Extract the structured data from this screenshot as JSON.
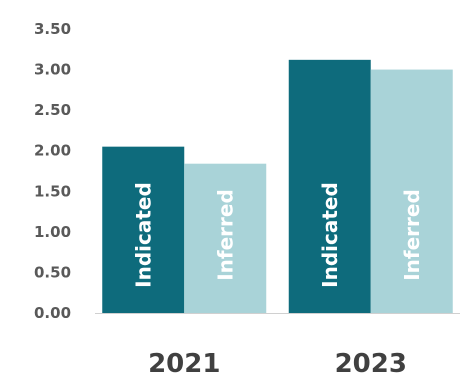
{
  "chart_data": {
    "type": "bar",
    "categories": [
      "2021",
      "2023"
    ],
    "series": [
      {
        "name": "Indicated",
        "values": [
          2.05,
          3.12
        ],
        "color": "#0e6b7c"
      },
      {
        "name": "Inferred",
        "values": [
          1.84,
          3.0
        ],
        "color": "#a9d3d8"
      }
    ],
    "y_ticks": [
      "0.00",
      "0.50",
      "1.00",
      "1.50",
      "2.00",
      "2.50",
      "3.00",
      "3.50"
    ],
    "ylim": [
      0,
      3.5
    ],
    "grid": false,
    "legend": "none",
    "title": "",
    "xlabel": "",
    "ylabel": ""
  }
}
